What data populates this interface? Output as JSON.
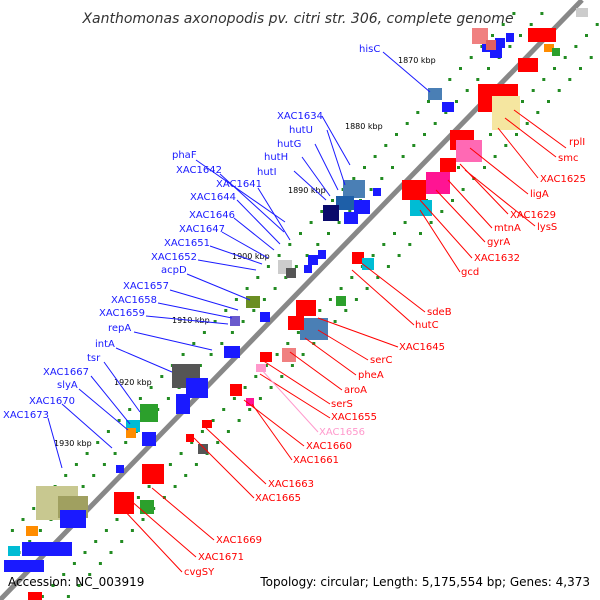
{
  "title": "Xanthomonas axonopodis pv. citri str. 306, complete genome",
  "footer": {
    "accession": "Accession: NC_003919",
    "stats": "Topology: circular; Length: 5,175,554 bp; Genes: 4,373"
  },
  "kbp_labels": [
    "1870 kbp",
    "1880 kbp",
    "1890 kbp",
    "1900 kbp",
    "1910 kbp",
    "1920 kbp",
    "1930 kbp"
  ],
  "labels_blue": [
    "hisC",
    "XAC1634",
    "hutU",
    "hutG",
    "hutH",
    "hutI",
    "phaF",
    "XAC1642",
    "XAC1641",
    "XAC1644",
    "XAC1646",
    "XAC1647",
    "XAC1651",
    "XAC1652",
    "acpD",
    "XAC1657",
    "XAC1658",
    "XAC1659",
    "repA",
    "intA",
    "tsr",
    "XAC1667",
    "slyA",
    "XAC1670",
    "XAC1673"
  ],
  "labels_red": [
    "rplI",
    "smc",
    "XAC1625",
    "ligA",
    "XAC1629",
    "lysS",
    "mtnA",
    "gyrA",
    "XAC1632",
    "gcd",
    "sdeB",
    "hutC",
    "XAC1645",
    "serC",
    "pheA",
    "aroA",
    "serS",
    "XAC1655",
    "XAC1656",
    "XAC1660",
    "XAC1661",
    "XAC1663",
    "XAC1665",
    "XAC1669",
    "XAC1671",
    "cvgSY"
  ],
  "colors": {
    "blue": "#1a1aff",
    "red": "#ff0000",
    "pink_label": "#ff99cc",
    "backbone": "#888888",
    "tick": "#228b22"
  }
}
